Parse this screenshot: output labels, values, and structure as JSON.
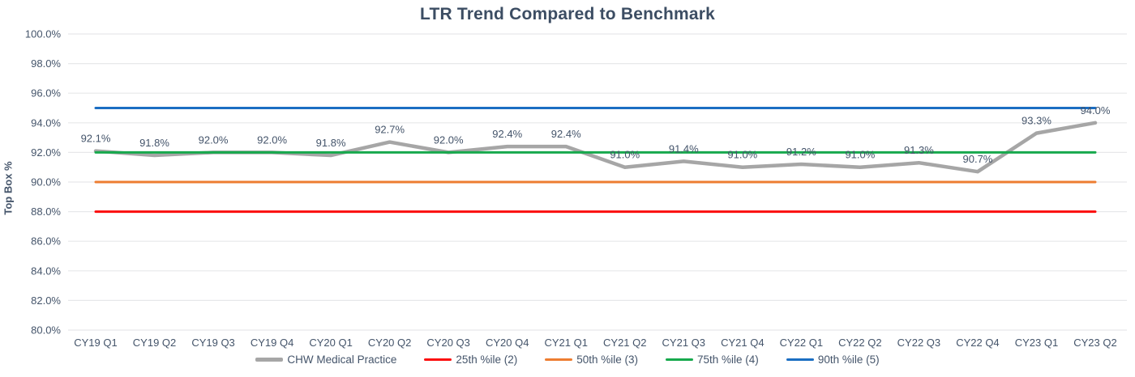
{
  "title": "LTR Trend Compared to Benchmark",
  "colors": {
    "title_text": "#3c4d63",
    "axis_text": "#44546a",
    "data_label_text": "#44546a",
    "gridline": "#e7e8ea",
    "background": "#ffffff",
    "series_gray": "#a6a6a6",
    "benchmark_red": "#fb0d0d",
    "benchmark_orange": "#ed7d31",
    "benchmark_green": "#17a94d",
    "benchmark_blue": "#1b6ec2"
  },
  "chart_data": {
    "type": "line",
    "title": "LTR Trend Compared to Benchmark",
    "xlabel": "",
    "ylabel": "Top Box %",
    "ylim": [
      80,
      100
    ],
    "ytick_step": 2,
    "ytick_suffix": "%",
    "grid": true,
    "legend_position": "bottom",
    "categories": [
      "CY19 Q1",
      "CY19 Q2",
      "CY19 Q3",
      "CY19 Q4",
      "CY20 Q1",
      "CY20 Q2",
      "CY20 Q3",
      "CY20 Q4",
      "CY21 Q1",
      "CY21 Q2",
      "CY21 Q3",
      "CY21 Q4",
      "CY22 Q1",
      "CY22 Q2",
      "CY22 Q3",
      "CY22 Q4",
      "CY23 Q1",
      "CY23 Q2"
    ],
    "series": [
      {
        "name": "CHW Medical Practice",
        "color": "#a6a6a6",
        "width": 4.5,
        "data_labels": true,
        "values": [
          92.1,
          91.8,
          92.0,
          92.0,
          91.8,
          92.7,
          92.0,
          92.4,
          92.4,
          91.0,
          91.4,
          91.0,
          91.2,
          91.0,
          91.3,
          90.7,
          93.3,
          94.0
        ]
      },
      {
        "name": "25th %ile (2)",
        "color": "#fb0d0d",
        "width": 3,
        "data_labels": false,
        "value": 88.0
      },
      {
        "name": "50th %ile (3)",
        "color": "#ed7d31",
        "width": 3,
        "data_labels": false,
        "value": 90.0
      },
      {
        "name": "75th %ile (4)",
        "color": "#17a94d",
        "width": 3,
        "data_labels": false,
        "value": 92.0
      },
      {
        "name": "90th %ile (5)",
        "color": "#1b6ec2",
        "width": 3,
        "data_labels": false,
        "value": 95.0
      }
    ]
  }
}
